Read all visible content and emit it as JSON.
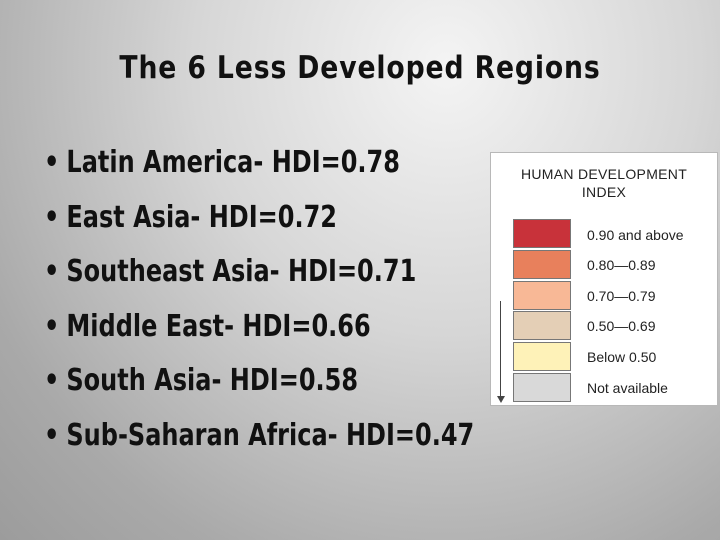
{
  "slide": {
    "title": "The 6 Less Developed Regions",
    "bullet_glyph": "•",
    "bullets": [
      "Latin America- HDI=0.78",
      "East Asia- HDI=0.72",
      "Southeast Asia- HDI=0.71",
      "Middle East- HDI=0.66",
      "South Asia- HDI=0.58",
      "Sub-Saharan Africa- HDI=0.47"
    ]
  },
  "legend": {
    "title_line1": "HUMAN DEVELOPMENT",
    "title_line2": "INDEX",
    "items": [
      {
        "label": "0.90 and above",
        "color": "#c8323a"
      },
      {
        "label": "0.80—0.89",
        "color": "#e8805c"
      },
      {
        "label": "0.70—0.79",
        "color": "#f8b896"
      },
      {
        "label": "0.50—0.69",
        "color": "#e4cfb6"
      },
      {
        "label": "Below 0.50",
        "color": "#fef2b8"
      },
      {
        "label": "Not available",
        "color": "#d9d9d9"
      }
    ]
  }
}
